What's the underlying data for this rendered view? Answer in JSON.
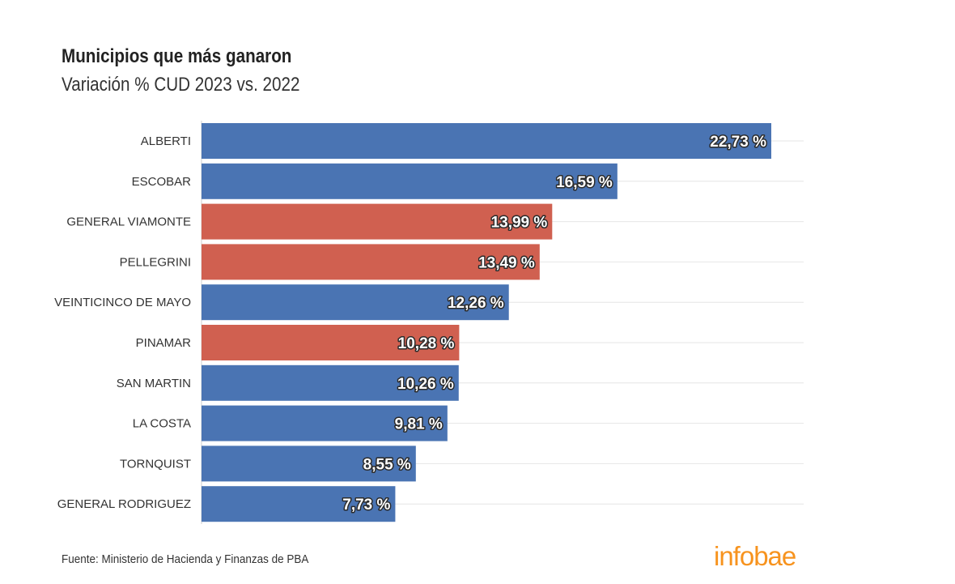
{
  "chart_data": {
    "type": "bar",
    "orientation": "horizontal",
    "title": "Municipios que más ganaron",
    "subtitle": "Variación % CUD 2023 vs. 2022",
    "categories": [
      "ALBERTI",
      "ESCOBAR",
      "GENERAL VIAMONTE",
      "PELLEGRINI",
      "VEINTICINCO DE MAYO",
      "PINAMAR",
      "SAN MARTIN",
      "LA COSTA",
      "TORNQUIST",
      "GENERAL RODRIGUEZ"
    ],
    "values": [
      22.73,
      16.59,
      13.99,
      13.49,
      12.26,
      10.28,
      10.26,
      9.81,
      8.55,
      7.73
    ],
    "value_labels": [
      "22,73 %",
      "16,59 %",
      "13,99 %",
      "13,49 %",
      "12,26 %",
      "10,28 %",
      "10,26 %",
      "9,81 %",
      "8,55 %",
      "7,73 %"
    ],
    "bar_colors": [
      "#4a74b3",
      "#4a74b3",
      "#d06050",
      "#d06050",
      "#4a74b3",
      "#d06050",
      "#4a74b3",
      "#4a74b3",
      "#4a74b3",
      "#4a74b3"
    ],
    "xlim": [
      0,
      24
    ],
    "grid": true,
    "legend": "none"
  },
  "colors": {
    "blue": "#4a74b3",
    "red": "#d06050",
    "brand": "#f7931e"
  },
  "source": "Fuente: Ministerio de Hacienda y Finanzas de PBA",
  "logo_text": "infobae"
}
